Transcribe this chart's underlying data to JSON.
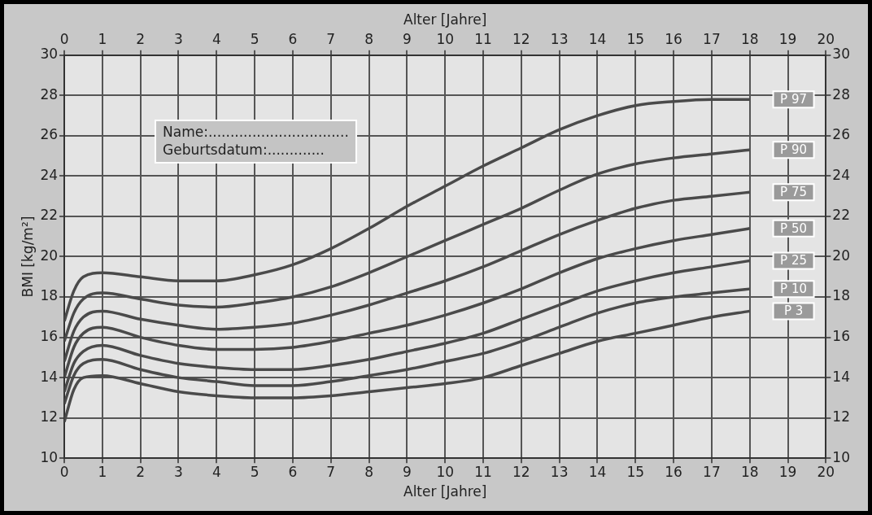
{
  "chart_data": {
    "type": "line",
    "xlabel": "Alter [Jahre]",
    "x2label": "Alter [Jahre]",
    "ylabel": "BMI [kg/m²]",
    "annotations": [
      "Name:................................",
      "Geburtsdatum:............."
    ],
    "x": [
      0,
      0.25,
      0.5,
      1,
      2,
      3,
      4,
      5,
      6,
      7,
      8,
      9,
      10,
      11,
      12,
      13,
      14,
      15,
      16,
      17,
      18
    ],
    "series": [
      {
        "name": "P 97",
        "color": "#4a4a4a",
        "values": [
          16.8,
          18.3,
          19.0,
          19.2,
          19.0,
          18.8,
          18.8,
          19.1,
          19.6,
          20.4,
          21.4,
          22.5,
          23.5,
          24.5,
          25.4,
          26.3,
          27.0,
          27.5,
          27.7,
          27.8,
          27.8
        ]
      },
      {
        "name": "P 90",
        "color": "#4a4a4a",
        "values": [
          15.8,
          17.2,
          17.9,
          18.2,
          17.9,
          17.6,
          17.5,
          17.7,
          18.0,
          18.5,
          19.2,
          20.0,
          20.8,
          21.6,
          22.4,
          23.3,
          24.1,
          24.6,
          24.9,
          25.1,
          25.3
        ]
      },
      {
        "name": "P 75",
        "color": "#4a4a4a",
        "values": [
          14.8,
          16.3,
          17.0,
          17.3,
          16.9,
          16.6,
          16.4,
          16.5,
          16.7,
          17.1,
          17.6,
          18.2,
          18.8,
          19.5,
          20.3,
          21.1,
          21.8,
          22.4,
          22.8,
          23.0,
          23.2
        ]
      },
      {
        "name": "P 50",
        "color": "#4a4a4a",
        "values": [
          14.0,
          15.5,
          16.2,
          16.5,
          16.0,
          15.6,
          15.4,
          15.4,
          15.5,
          15.8,
          16.2,
          16.6,
          17.1,
          17.7,
          18.4,
          19.2,
          19.9,
          20.4,
          20.8,
          21.1,
          21.4
        ]
      },
      {
        "name": "P 25",
        "color": "#4a4a4a",
        "values": [
          13.3,
          14.7,
          15.3,
          15.6,
          15.1,
          14.7,
          14.5,
          14.4,
          14.4,
          14.6,
          14.9,
          15.3,
          15.7,
          16.2,
          16.9,
          17.6,
          18.3,
          18.8,
          19.2,
          19.5,
          19.8
        ]
      },
      {
        "name": "P 10",
        "color": "#4a4a4a",
        "values": [
          12.7,
          14.1,
          14.7,
          14.9,
          14.4,
          14.0,
          13.8,
          13.6,
          13.6,
          13.8,
          14.1,
          14.4,
          14.8,
          15.2,
          15.8,
          16.5,
          17.2,
          17.7,
          18.0,
          18.2,
          18.4
        ]
      },
      {
        "name": "P 3",
        "color": "#4a4a4a",
        "values": [
          11.8,
          13.4,
          14.0,
          14.1,
          13.7,
          13.3,
          13.1,
          13.0,
          13.0,
          13.1,
          13.3,
          13.5,
          13.7,
          14.0,
          14.6,
          15.2,
          15.8,
          16.2,
          16.6,
          17.0,
          17.3
        ]
      }
    ],
    "xlim": [
      0,
      20
    ],
    "xticks": [
      0,
      1,
      2,
      3,
      4,
      5,
      6,
      7,
      8,
      9,
      10,
      11,
      12,
      13,
      14,
      15,
      16,
      17,
      18,
      19,
      20
    ],
    "x2lim": [
      0,
      20
    ],
    "x2ticks": [
      0,
      1,
      2,
      3,
      4,
      5,
      6,
      7,
      8,
      9,
      10,
      11,
      12,
      13,
      14,
      15,
      16,
      17,
      18,
      19,
      20
    ],
    "ylim": [
      10,
      30
    ],
    "yticks": [
      10,
      12,
      14,
      16,
      18,
      20,
      22,
      24,
      26,
      28,
      30
    ],
    "y2lim": [
      10,
      30
    ],
    "y2ticks": [
      10,
      12,
      14,
      16,
      18,
      20,
      22,
      24,
      26,
      28,
      30
    ],
    "grid": true,
    "legend": false,
    "marker": "none",
    "line_style": "solid"
  }
}
